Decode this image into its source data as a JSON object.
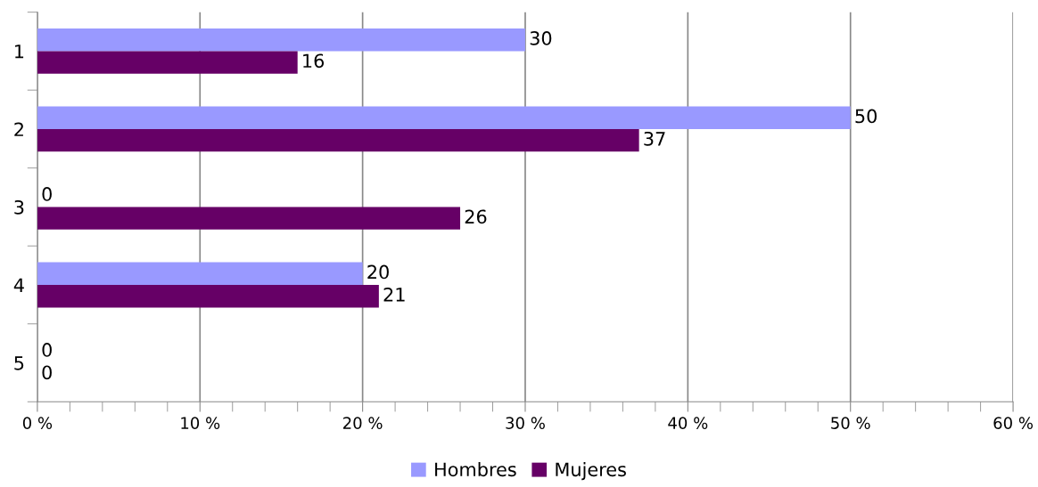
{
  "chart_data": {
    "type": "bar",
    "orientation": "horizontal",
    "categories": [
      "1",
      "2",
      "3",
      "4",
      "5"
    ],
    "series": [
      {
        "name": "Hombres",
        "color": "#9999ff",
        "values": [
          30,
          50,
          0,
          20,
          0
        ]
      },
      {
        "name": "Mujeres",
        "color": "#660066",
        "values": [
          16,
          37,
          26,
          21,
          0
        ]
      }
    ],
    "xlim": [
      0,
      60
    ],
    "xticks": [
      {
        "value": 0,
        "label": "0 %"
      },
      {
        "value": 10,
        "label": "10 %"
      },
      {
        "value": 20,
        "label": "20 %"
      },
      {
        "value": 30,
        "label": "30 %"
      },
      {
        "value": 40,
        "label": "40 %"
      },
      {
        "value": 50,
        "label": "50 %"
      },
      {
        "value": 60,
        "label": "60 %"
      }
    ],
    "grid": "x",
    "legend": "bottom",
    "data_labels": true
  }
}
